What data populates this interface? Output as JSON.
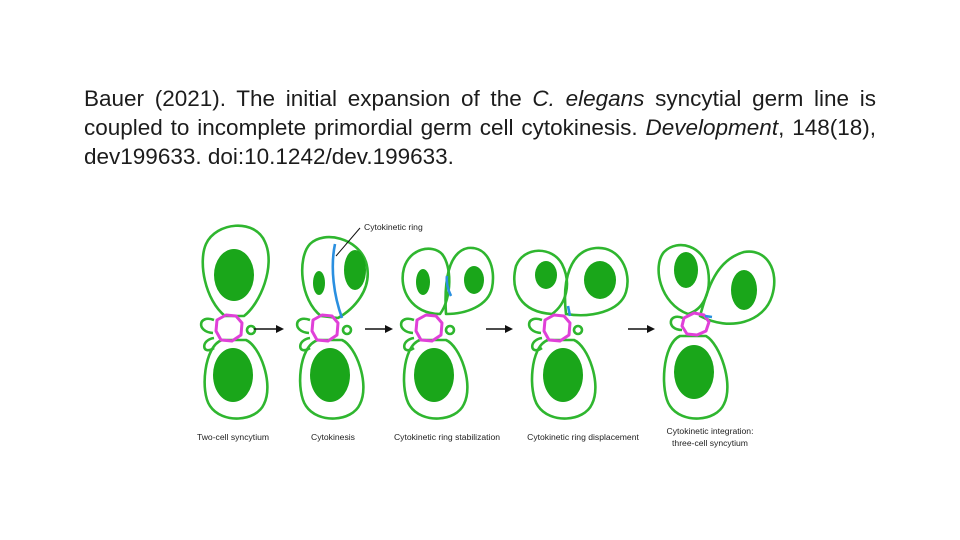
{
  "citation": {
    "author_year": "Bauer (2021). The initial expansion of the ",
    "species": "C. elegans",
    "title_rest": " syncytial germ line is coupled to incomplete primordial germ cell cytokinesis. ",
    "journal": "Development",
    "details": ", 148(18), dev199633. doi:10.1242/dev.199633."
  },
  "figure": {
    "callout": "Cytokinetic ring",
    "stages": [
      {
        "caption_1": "Two-cell syncytium",
        "caption_2": ""
      },
      {
        "caption_1": "Cytokinesis",
        "caption_2": ""
      },
      {
        "caption_1": "Cytokinetic ring stabilization",
        "caption_2": ""
      },
      {
        "caption_1": "Cytokinetic ring displacement",
        "caption_2": ""
      },
      {
        "caption_1": "Cytokinetic integration:",
        "caption_2": "three-cell syncytium"
      }
    ],
    "colors": {
      "membrane": "#2fb62f",
      "nucleus": "#1aa61a",
      "ring": "#2a8fe0",
      "rachis_ring": "#e040d8"
    }
  }
}
